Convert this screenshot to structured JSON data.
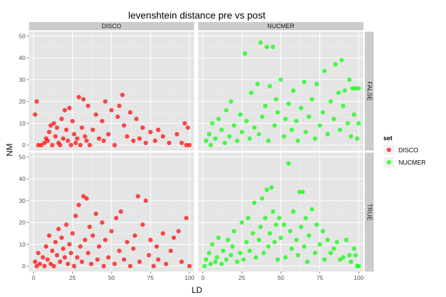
{
  "chart_data": {
    "type": "scatter",
    "title": "levenshtein distance pre vs post",
    "xlabel": "LD",
    "ylabel": "NM",
    "xlim": [
      -3,
      103
    ],
    "ylim": [
      -2.5,
      52
    ],
    "x_ticks": [
      0,
      25,
      50,
      75,
      100
    ],
    "y_ticks": [
      0,
      10,
      20,
      30,
      40,
      50
    ],
    "facet_columns": [
      "DISCO",
      "NUCMER"
    ],
    "facet_rows": [
      "FALSE",
      "TRUE"
    ],
    "grid": true,
    "legend": {
      "title": "set",
      "position": "right",
      "entries": [
        {
          "label": "DISCO",
          "color": "#ff0000"
        },
        {
          "label": "NUCMER",
          "color": "#00ff00"
        }
      ]
    },
    "panels": [
      {
        "column": "DISCO",
        "row": "FALSE",
        "series": "DISCO",
        "color": "#ff0000",
        "points": [
          [
            1,
            14
          ],
          [
            2,
            20
          ],
          [
            3,
            0
          ],
          [
            5,
            0
          ],
          [
            7,
            1
          ],
          [
            8,
            3
          ],
          [
            9,
            2
          ],
          [
            10,
            6
          ],
          [
            11,
            9
          ],
          [
            12,
            0
          ],
          [
            13,
            10
          ],
          [
            14,
            4
          ],
          [
            15,
            8
          ],
          [
            16,
            1
          ],
          [
            17,
            0
          ],
          [
            18,
            12
          ],
          [
            19,
            3
          ],
          [
            20,
            16
          ],
          [
            21,
            7
          ],
          [
            22,
            2
          ],
          [
            23,
            17
          ],
          [
            24,
            0
          ],
          [
            25,
            11
          ],
          [
            26,
            5
          ],
          [
            27,
            1
          ],
          [
            28,
            3
          ],
          [
            29,
            22
          ],
          [
            30,
            0
          ],
          [
            31,
            8
          ],
          [
            32,
            21
          ],
          [
            33,
            4
          ],
          [
            34,
            2
          ],
          [
            35,
            18
          ],
          [
            36,
            0
          ],
          [
            38,
            7
          ],
          [
            40,
            14
          ],
          [
            42,
            3
          ],
          [
            44,
            11
          ],
          [
            45,
            2
          ],
          [
            46,
            20
          ],
          [
            48,
            5
          ],
          [
            50,
            16
          ],
          [
            52,
            0
          ],
          [
            54,
            13
          ],
          [
            55,
            18
          ],
          [
            57,
            23
          ],
          [
            58,
            9
          ],
          [
            60,
            4
          ],
          [
            62,
            15
          ],
          [
            64,
            2
          ],
          [
            66,
            12
          ],
          [
            68,
            3
          ],
          [
            70,
            8
          ],
          [
            72,
            1
          ],
          [
            75,
            6
          ],
          [
            78,
            2
          ],
          [
            80,
            7
          ],
          [
            83,
            4
          ],
          [
            87,
            1
          ],
          [
            92,
            5
          ],
          [
            95,
            1
          ],
          [
            97,
            10
          ],
          [
            98,
            0
          ],
          [
            99,
            8
          ],
          [
            100,
            0
          ]
        ]
      },
      {
        "column": "NUCMER",
        "row": "FALSE",
        "series": "NUCMER",
        "color": "#00ff00",
        "points": [
          [
            2,
            2
          ],
          [
            4,
            5
          ],
          [
            5,
            0
          ],
          [
            6,
            10
          ],
          [
            8,
            3
          ],
          [
            10,
            12
          ],
          [
            12,
            7
          ],
          [
            14,
            1
          ],
          [
            15,
            16
          ],
          [
            17,
            4
          ],
          [
            18,
            20
          ],
          [
            20,
            9
          ],
          [
            22,
            2
          ],
          [
            24,
            14
          ],
          [
            25,
            6
          ],
          [
            27,
            42
          ],
          [
            28,
            11
          ],
          [
            30,
            3
          ],
          [
            31,
            24
          ],
          [
            33,
            8
          ],
          [
            35,
            28
          ],
          [
            36,
            5
          ],
          [
            37,
            47
          ],
          [
            38,
            13
          ],
          [
            40,
            18
          ],
          [
            41,
            45
          ],
          [
            42,
            2
          ],
          [
            43,
            27
          ],
          [
            45,
            45
          ],
          [
            46,
            9
          ],
          [
            47,
            21
          ],
          [
            48,
            15
          ],
          [
            50,
            30
          ],
          [
            52,
            4
          ],
          [
            53,
            12
          ],
          [
            55,
            19
          ],
          [
            57,
            7
          ],
          [
            58,
            25
          ],
          [
            60,
            11
          ],
          [
            61,
            2
          ],
          [
            63,
            17
          ],
          [
            65,
            29
          ],
          [
            66,
            6
          ],
          [
            68,
            13
          ],
          [
            70,
            21
          ],
          [
            72,
            3
          ],
          [
            73,
            28
          ],
          [
            75,
            9
          ],
          [
            77,
            15
          ],
          [
            78,
            34
          ],
          [
            80,
            5
          ],
          [
            82,
            20
          ],
          [
            84,
            12
          ],
          [
            85,
            37
          ],
          [
            87,
            24
          ],
          [
            88,
            7
          ],
          [
            89,
            39
          ],
          [
            90,
            18
          ],
          [
            91,
            25
          ],
          [
            93,
            10
          ],
          [
            94,
            30
          ],
          [
            95,
            4
          ],
          [
            96,
            26
          ],
          [
            97,
            14
          ],
          [
            98,
            26
          ],
          [
            99,
            3
          ],
          [
            100,
            26
          ],
          [
            100,
            10
          ]
        ]
      },
      {
        "column": "DISCO",
        "row": "TRUE",
        "series": "DISCO",
        "color": "#ff0000",
        "points": [
          [
            1,
            2
          ],
          [
            2,
            0
          ],
          [
            3,
            6
          ],
          [
            4,
            1
          ],
          [
            6,
            4
          ],
          [
            7,
            0
          ],
          [
            8,
            9
          ],
          [
            9,
            3
          ],
          [
            10,
            14
          ],
          [
            11,
            1
          ],
          [
            12,
            7
          ],
          [
            13,
            0
          ],
          [
            14,
            11
          ],
          [
            15,
            5
          ],
          [
            16,
            17
          ],
          [
            17,
            2
          ],
          [
            18,
            13
          ],
          [
            19,
            8
          ],
          [
            20,
            4
          ],
          [
            21,
            19
          ],
          [
            22,
            1
          ],
          [
            23,
            10
          ],
          [
            24,
            6
          ],
          [
            25,
            15
          ],
          [
            26,
            0
          ],
          [
            27,
            23
          ],
          [
            28,
            4
          ],
          [
            29,
            28
          ],
          [
            30,
            9
          ],
          [
            31,
            2
          ],
          [
            32,
            32
          ],
          [
            33,
            12
          ],
          [
            34,
            31
          ],
          [
            35,
            6
          ],
          [
            36,
            18
          ],
          [
            37,
            1
          ],
          [
            38,
            14
          ],
          [
            40,
            24
          ],
          [
            41,
            3
          ],
          [
            42,
            9
          ],
          [
            44,
            20
          ],
          [
            45,
            0
          ],
          [
            46,
            12
          ],
          [
            48,
            4
          ],
          [
            50,
            16
          ],
          [
            52,
            1
          ],
          [
            53,
            22
          ],
          [
            55,
            7
          ],
          [
            56,
            25
          ],
          [
            58,
            3
          ],
          [
            60,
            11
          ],
          [
            62,
            0
          ],
          [
            64,
            8
          ],
          [
            65,
            14
          ],
          [
            67,
            32
          ],
          [
            68,
            2
          ],
          [
            70,
            19
          ],
          [
            72,
            30
          ],
          [
            74,
            5
          ],
          [
            75,
            12
          ],
          [
            77,
            0
          ],
          [
            79,
            9
          ],
          [
            80,
            3
          ],
          [
            83,
            15
          ],
          [
            85,
            1
          ],
          [
            88,
            7
          ],
          [
            90,
            13
          ],
          [
            93,
            16
          ],
          [
            95,
            2
          ],
          [
            98,
            22
          ],
          [
            100,
            0
          ]
        ]
      },
      {
        "column": "NUCMER",
        "row": "TRUE",
        "series": "NUCMER",
        "color": "#00ff00",
        "points": [
          [
            1,
            0
          ],
          [
            2,
            3
          ],
          [
            4,
            6
          ],
          [
            5,
            1
          ],
          [
            6,
            10
          ],
          [
            8,
            2
          ],
          [
            9,
            4
          ],
          [
            10,
            13
          ],
          [
            12,
            1
          ],
          [
            13,
            7
          ],
          [
            15,
            3
          ],
          [
            16,
            12
          ],
          [
            18,
            5
          ],
          [
            19,
            9
          ],
          [
            20,
            16
          ],
          [
            22,
            2
          ],
          [
            24,
            6
          ],
          [
            25,
            20
          ],
          [
            26,
            3
          ],
          [
            28,
            11
          ],
          [
            29,
            22
          ],
          [
            30,
            7
          ],
          [
            32,
            15
          ],
          [
            33,
            29
          ],
          [
            34,
            4
          ],
          [
            36,
            12
          ],
          [
            37,
            18
          ],
          [
            38,
            31
          ],
          [
            39,
            6
          ],
          [
            40,
            22
          ],
          [
            41,
            35
          ],
          [
            42,
            9
          ],
          [
            43,
            15
          ],
          [
            44,
            36
          ],
          [
            45,
            25
          ],
          [
            46,
            11
          ],
          [
            47,
            19
          ],
          [
            48,
            3
          ],
          [
            49,
            22
          ],
          [
            50,
            13
          ],
          [
            52,
            19
          ],
          [
            53,
            4
          ],
          [
            55,
            47
          ],
          [
            56,
            16
          ],
          [
            57,
            8
          ],
          [
            58,
            25
          ],
          [
            60,
            12
          ],
          [
            61,
            5
          ],
          [
            62,
            34
          ],
          [
            63,
            18
          ],
          [
            64,
            34
          ],
          [
            65,
            9
          ],
          [
            66,
            22
          ],
          [
            67,
            2
          ],
          [
            68,
            14
          ],
          [
            70,
            26
          ],
          [
            72,
            6
          ],
          [
            73,
            19
          ],
          [
            75,
            10
          ],
          [
            77,
            16
          ],
          [
            78,
            3
          ],
          [
            80,
            12
          ],
          [
            82,
            6
          ],
          [
            84,
            8
          ],
          [
            86,
            11
          ],
          [
            88,
            3
          ],
          [
            90,
            4
          ],
          [
            92,
            12
          ],
          [
            94,
            5
          ],
          [
            95,
            2
          ],
          [
            97,
            8
          ],
          [
            98,
            5
          ],
          [
            99,
            0
          ],
          [
            100,
            0
          ]
        ]
      }
    ]
  }
}
